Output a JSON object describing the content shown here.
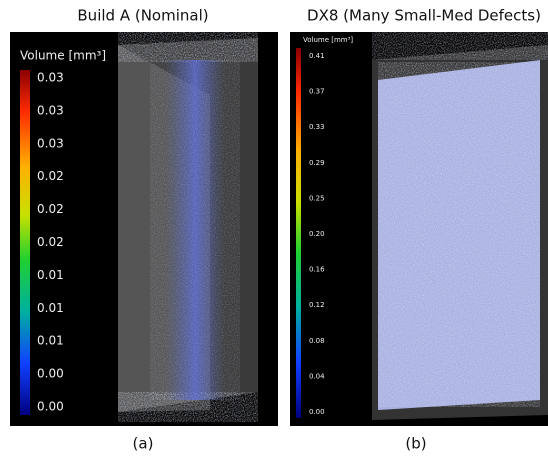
{
  "panels": [
    {
      "title": "Build A (Nominal)",
      "colorbar_label": "Volume [mm³]",
      "ticks": [
        "0.03",
        "0.03",
        "0.03",
        "0.02",
        "0.02",
        "0.02",
        "0.01",
        "0.01",
        "0.01",
        "0.00",
        "0.00"
      ],
      "caption": "(a)"
    },
    {
      "title": "DX8 (Many Small-Med Defects)",
      "colorbar_label": "Volume [mm³]",
      "ticks": [
        "0.41",
        "0.37",
        "0.33",
        "0.29",
        "0.25",
        "0.20",
        "0.16",
        "0.12",
        "0.08",
        "0.04",
        "0.00"
      ],
      "caption": "(b)"
    }
  ]
}
